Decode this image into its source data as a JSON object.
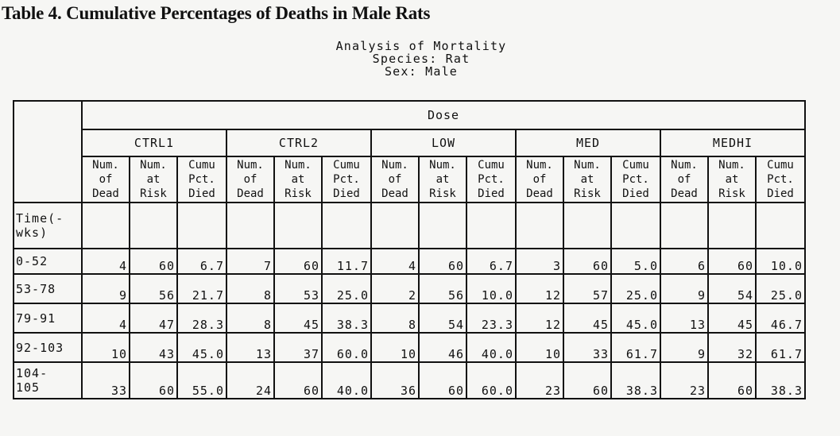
{
  "title": "Table 4. Cumulative Percentages of Deaths in Male Rats",
  "analysis_header": [
    "Analysis of Mortality",
    "Species: Rat",
    "Sex: Male"
  ],
  "table": {
    "dose_label": "Dose",
    "groups": [
      "CTRL1",
      "CTRL2",
      "LOW",
      "MED",
      "MEDHI"
    ],
    "subheaders": [
      [
        "Num.",
        "of",
        "Dead"
      ],
      [
        "Num.",
        "at",
        "Risk"
      ],
      [
        "Cumu",
        "Pct.",
        "Died"
      ]
    ],
    "time_header": "Time(-\nwks)",
    "rows": [
      {
        "time": "0-52",
        "values": [
          "4",
          "60",
          "6.7",
          "7",
          "60",
          "11.7",
          "4",
          "60",
          "6.7",
          "3",
          "60",
          "5.0",
          "6",
          "60",
          "10.0"
        ]
      },
      {
        "time": "53-78",
        "values": [
          "9",
          "56",
          "21.7",
          "8",
          "53",
          "25.0",
          "2",
          "56",
          "10.0",
          "12",
          "57",
          "25.0",
          "9",
          "54",
          "25.0"
        ]
      },
      {
        "time": "79-91",
        "values": [
          "4",
          "47",
          "28.3",
          "8",
          "45",
          "38.3",
          "8",
          "54",
          "23.3",
          "12",
          "45",
          "45.0",
          "13",
          "45",
          "46.7"
        ]
      },
      {
        "time": "92-103",
        "values": [
          "10",
          "43",
          "45.0",
          "13",
          "37",
          "60.0",
          "10",
          "46",
          "40.0",
          "10",
          "33",
          "61.7",
          "9",
          "32",
          "61.7"
        ]
      },
      {
        "time": "104-\n105",
        "values": [
          "33",
          "60",
          "55.0",
          "24",
          "60",
          "40.0",
          "36",
          "60",
          "60.0",
          "23",
          "60",
          "38.3",
          "23",
          "60",
          "38.3"
        ]
      }
    ]
  }
}
